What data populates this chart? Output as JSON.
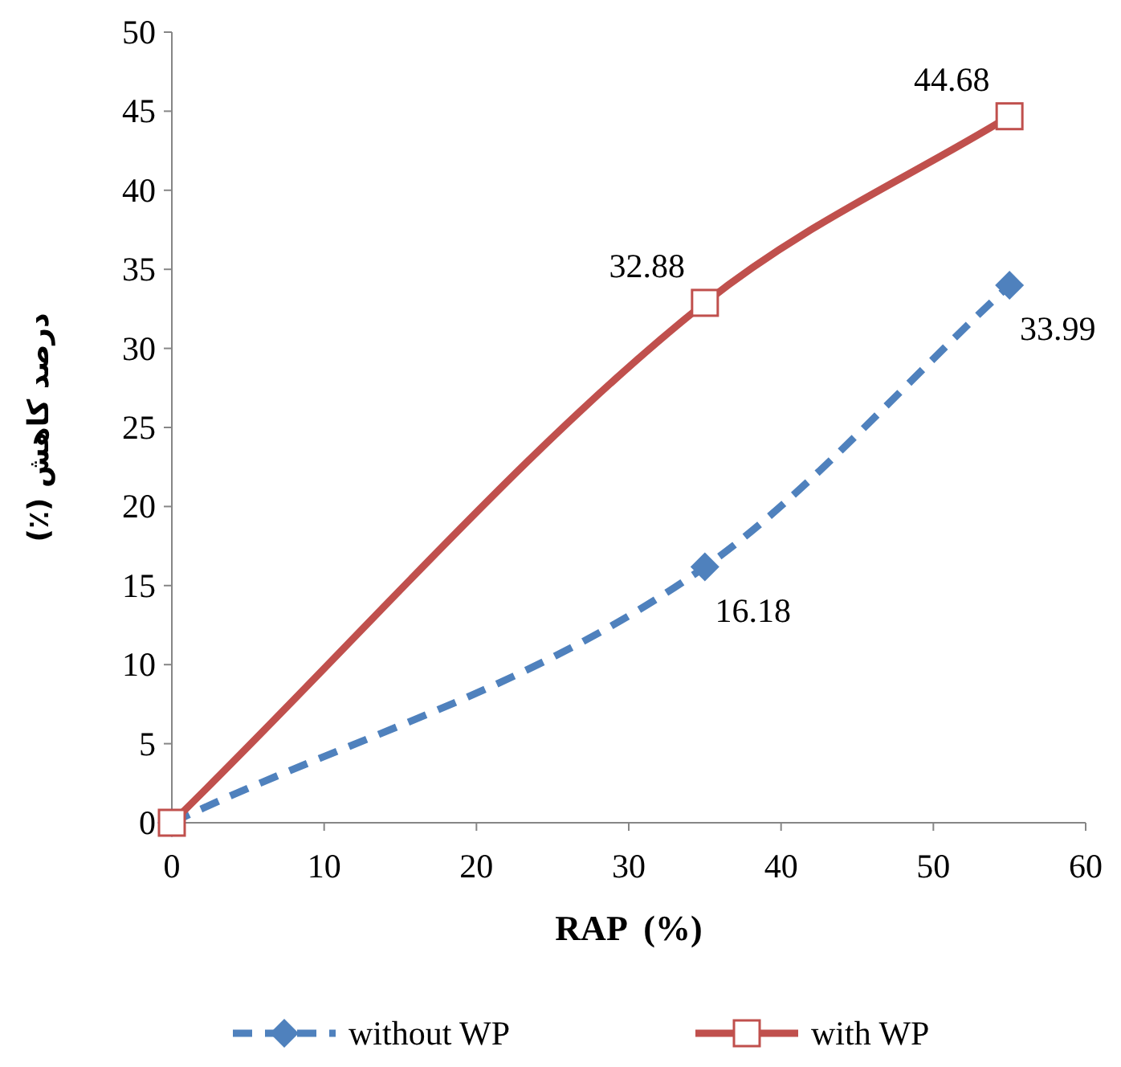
{
  "chart_data": {
    "type": "line",
    "xlabel": "RAP  (%)",
    "ylabel": "درصد کاهش (٪)",
    "xlim": [
      0,
      60
    ],
    "xticks": [
      0,
      10,
      20,
      30,
      40,
      50,
      60
    ],
    "ylim": [
      0,
      50
    ],
    "yticks": [
      0,
      5,
      10,
      15,
      20,
      25,
      30,
      35,
      40,
      45,
      50
    ],
    "grid": false,
    "legend": "bottom",
    "series": [
      {
        "name": "without WP",
        "color": "#4f81bd",
        "x": [
          0,
          35,
          55
        ],
        "values": [
          0,
          16.18,
          33.99
        ],
        "marker": "diamond",
        "line_style": "dashed",
        "value_labels": [
          null,
          "16.18",
          "33.99"
        ]
      },
      {
        "name": "with WP",
        "color": "#c0504d",
        "x": [
          0,
          35,
          55
        ],
        "values": [
          0,
          32.88,
          44.68
        ],
        "marker": "square",
        "line_style": "solid",
        "value_labels": [
          null,
          "32.88",
          "44.68"
        ]
      }
    ]
  }
}
